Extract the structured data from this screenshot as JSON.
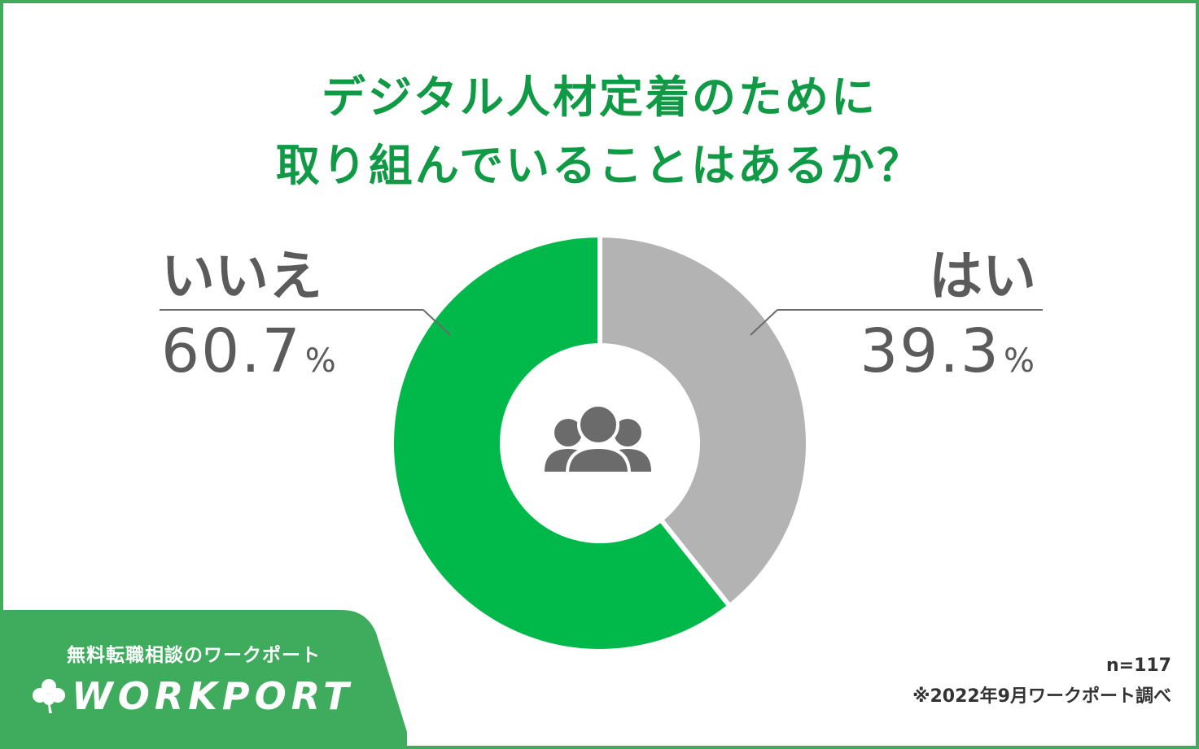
{
  "title": {
    "line1": "デジタル人材定着のために",
    "line2": "取り組んでいることはあるか？"
  },
  "colors": {
    "accent": "#119a46",
    "slice_no": "#00b94a",
    "slice_yes": "#b3b3b3",
    "frame": "#3fab5c",
    "text": "#5b5b5b",
    "icon": "#6b6b6b"
  },
  "chart_data": {
    "type": "pie",
    "style": "donut",
    "categories": [
      "はい",
      "いいえ"
    ],
    "values": [
      39.3,
      60.7
    ],
    "value_labels": [
      "39.3",
      "60.7"
    ],
    "unit": "%",
    "center_icon": "group-people-icon"
  },
  "footnote": {
    "sample": "n=117",
    "source": "※2022年9月ワークポート調べ"
  },
  "brand": {
    "tagline": "無料転職相談のワークポート",
    "name": "WORKPORT",
    "logo_icon": "clover-icon"
  }
}
